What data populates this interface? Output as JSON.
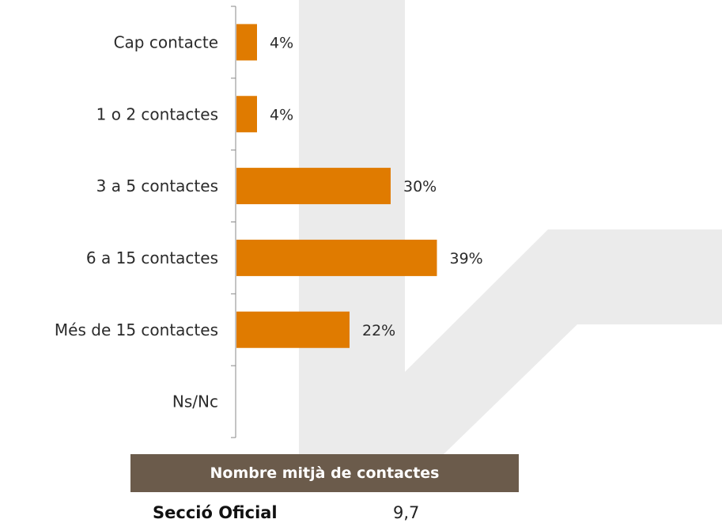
{
  "chart_data": {
    "type": "bar",
    "orientation": "horizontal",
    "categories": [
      "Cap contacte",
      "1 o 2 contactes",
      "3 a 5 contactes",
      "6 a 15 contactes",
      "Més de 15 contactes",
      "Ns/Nc"
    ],
    "values": [
      4,
      4,
      30,
      39,
      22,
      null
    ],
    "value_labels": [
      "4%",
      "4%",
      "30%",
      "39%",
      "22%",
      ""
    ],
    "xlim": [
      0,
      45
    ],
    "bar_color": "#e07b00",
    "grid": false,
    "legend": "none"
  },
  "summary": {
    "header": "Nombre mitjà de contactes",
    "row_label": "Secció Oficial",
    "row_value": "9,7",
    "header_color": "#6b5b4b"
  }
}
